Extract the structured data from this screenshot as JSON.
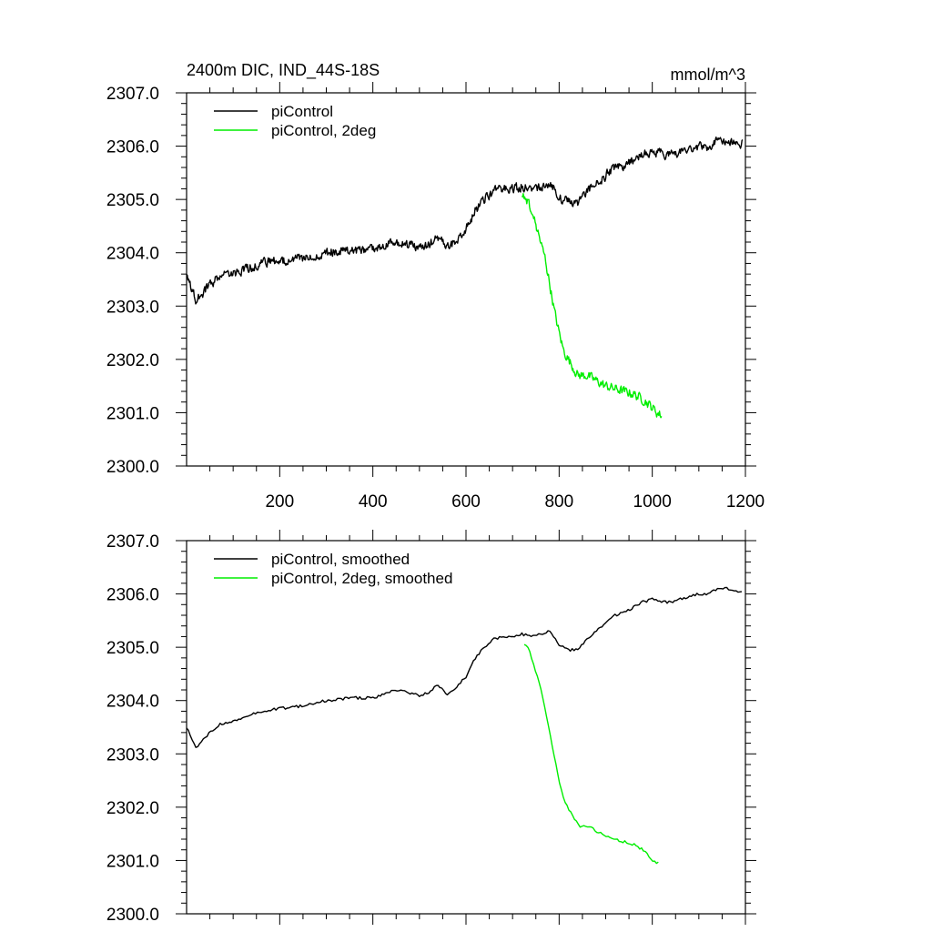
{
  "chart_data": [
    {
      "type": "line",
      "title": "2400m DIC, IND_44S-18S",
      "units": "mmol/m^3",
      "xlim": [
        0,
        1200
      ],
      "ylim": [
        2300.0,
        2307.0
      ],
      "x_ticks": [
        200,
        400,
        600,
        800,
        1000,
        1200
      ],
      "x_tick_labels": [
        "200",
        "400",
        "600",
        "800",
        "1000",
        "1200"
      ],
      "y_ticks": [
        2300,
        2301,
        2302,
        2303,
        2304,
        2305,
        2306,
        2307
      ],
      "y_tick_labels": [
        "2300.0",
        "2301.0",
        "2302.0",
        "2303.0",
        "2304.0",
        "2305.0",
        "2306.0",
        "2307.0"
      ],
      "legend_position": "top-left",
      "series": [
        {
          "name": "piControl",
          "color": "#000000",
          "noisy": true,
          "x": [
            0,
            10,
            20,
            30,
            50,
            70,
            100,
            130,
            160,
            200,
            250,
            300,
            350,
            400,
            450,
            500,
            520,
            540,
            560,
            580,
            600,
            620,
            640,
            660,
            680,
            700,
            720,
            740,
            760,
            780,
            800,
            820,
            840,
            860,
            880,
            900,
            920,
            940,
            960,
            980,
            1000,
            1020,
            1040,
            1060,
            1080,
            1100,
            1120,
            1140,
            1160,
            1180,
            1195
          ],
          "values": [
            2303.55,
            2303.35,
            2303.1,
            2303.2,
            2303.4,
            2303.55,
            2303.6,
            2303.7,
            2303.8,
            2303.85,
            2303.9,
            2304.0,
            2304.05,
            2304.05,
            2304.2,
            2304.1,
            2304.15,
            2304.3,
            2304.1,
            2304.25,
            2304.45,
            2304.8,
            2305.0,
            2305.15,
            2305.2,
            2305.2,
            2305.25,
            2305.2,
            2305.25,
            2305.3,
            2305.05,
            2304.95,
            2304.95,
            2305.15,
            2305.3,
            2305.45,
            2305.6,
            2305.65,
            2305.75,
            2305.85,
            2305.9,
            2305.85,
            2305.85,
            2305.9,
            2305.95,
            2306.0,
            2306.0,
            2306.1,
            2306.1,
            2306.05,
            2306.05
          ]
        },
        {
          "name": "piControl, 2deg",
          "color": "#00ee00",
          "noisy": true,
          "x": [
            720,
            730,
            740,
            750,
            760,
            770,
            780,
            790,
            800,
            810,
            820,
            830,
            840,
            860,
            880,
            900,
            920,
            940,
            960,
            980,
            1000,
            1010,
            1020
          ],
          "values": [
            2305.1,
            2305.0,
            2304.8,
            2304.55,
            2304.2,
            2303.9,
            2303.4,
            2302.9,
            2302.5,
            2302.15,
            2302.0,
            2301.85,
            2301.7,
            2301.7,
            2301.6,
            2301.5,
            2301.45,
            2301.4,
            2301.35,
            2301.25,
            2301.1,
            2301.0,
            2300.95
          ]
        }
      ]
    },
    {
      "type": "line",
      "title": "",
      "units": "",
      "xlim": [
        0,
        1200
      ],
      "ylim": [
        2300.0,
        2307.0
      ],
      "x_ticks": [
        200,
        400,
        600,
        800,
        1000,
        1200
      ],
      "x_tick_labels": [],
      "y_ticks": [
        2300,
        2301,
        2302,
        2303,
        2304,
        2305,
        2306,
        2307
      ],
      "y_tick_labels": [
        "2300.0",
        "2301.0",
        "2302.0",
        "2303.0",
        "2304.0",
        "2305.0",
        "2306.0",
        "2307.0"
      ],
      "legend_position": "top-left",
      "series": [
        {
          "name": "piControl, smoothed",
          "color": "#000000",
          "noisy": false,
          "x": [
            0,
            10,
            20,
            30,
            50,
            70,
            100,
            130,
            160,
            200,
            250,
            300,
            350,
            400,
            450,
            500,
            520,
            540,
            560,
            580,
            600,
            620,
            640,
            660,
            680,
            700,
            720,
            740,
            760,
            780,
            800,
            820,
            840,
            860,
            880,
            900,
            920,
            940,
            960,
            980,
            1000,
            1020,
            1040,
            1060,
            1080,
            1100,
            1120,
            1140,
            1160,
            1180,
            1195
          ],
          "values": [
            2303.5,
            2303.3,
            2303.1,
            2303.2,
            2303.4,
            2303.55,
            2303.6,
            2303.7,
            2303.8,
            2303.85,
            2303.9,
            2304.0,
            2304.05,
            2304.05,
            2304.2,
            2304.1,
            2304.15,
            2304.3,
            2304.1,
            2304.25,
            2304.45,
            2304.8,
            2305.0,
            2305.15,
            2305.2,
            2305.2,
            2305.25,
            2305.2,
            2305.25,
            2305.3,
            2305.05,
            2304.95,
            2304.95,
            2305.15,
            2305.3,
            2305.45,
            2305.6,
            2305.65,
            2305.75,
            2305.85,
            2305.9,
            2305.85,
            2305.85,
            2305.9,
            2305.95,
            2306.0,
            2306.0,
            2306.1,
            2306.1,
            2306.05,
            2306.05
          ]
        },
        {
          "name": "piControl, 2deg, smoothed",
          "color": "#00ee00",
          "noisy": false,
          "x": [
            725,
            735,
            745,
            755,
            765,
            775,
            785,
            795,
            805,
            815,
            825,
            835,
            845,
            860,
            880,
            900,
            920,
            940,
            960,
            980,
            1000,
            1010,
            1015
          ],
          "values": [
            2305.05,
            2304.95,
            2304.7,
            2304.4,
            2304.05,
            2303.6,
            2303.15,
            2302.7,
            2302.3,
            2302.05,
            2301.9,
            2301.75,
            2301.65,
            2301.65,
            2301.55,
            2301.45,
            2301.4,
            2301.35,
            2301.3,
            2301.2,
            2301.0,
            2300.95,
            2301.0
          ]
        }
      ]
    }
  ]
}
